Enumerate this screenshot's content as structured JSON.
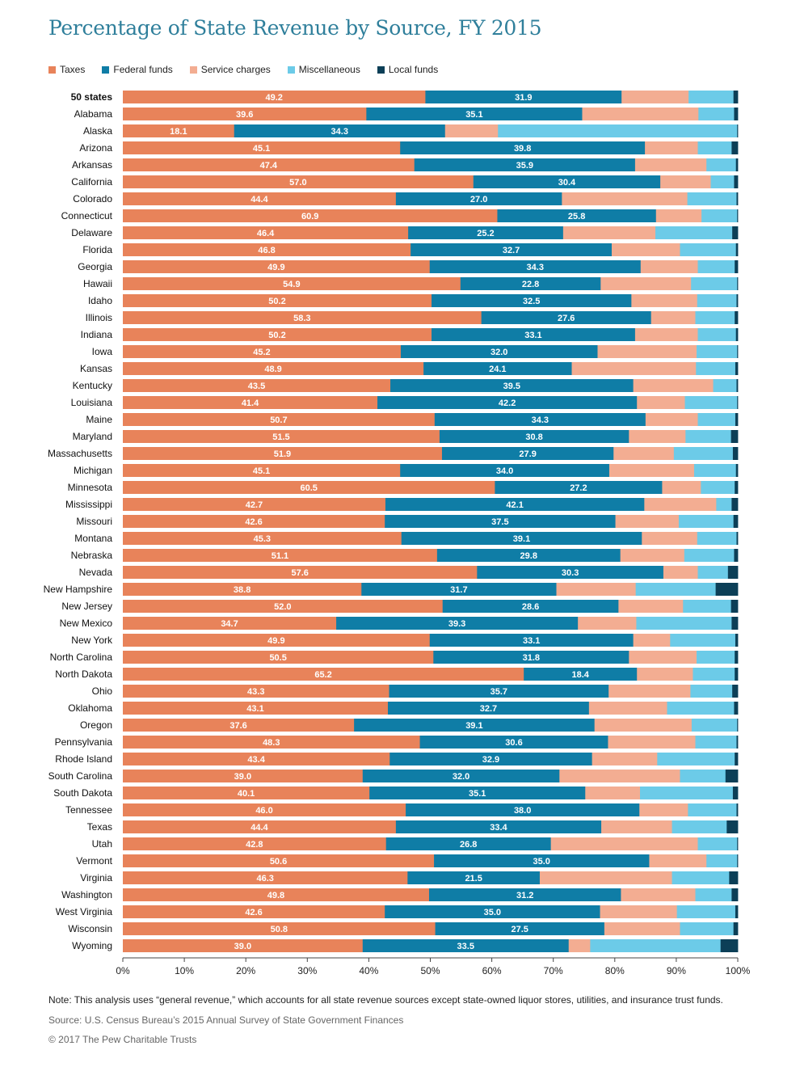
{
  "chart_data": {
    "type": "bar",
    "orientation": "horizontal",
    "stacked": true,
    "title": "Percentage of State Revenue by Source, FY 2015",
    "xlim": [
      0,
      100
    ],
    "x_ticks": [
      "0%",
      "10%",
      "20%",
      "30%",
      "40%",
      "50%",
      "60%",
      "70%",
      "80%",
      "90%",
      "100%"
    ],
    "legend_position": "top-left",
    "grid": false,
    "series": [
      {
        "name": "Taxes",
        "color": "#e8835a",
        "labeled": true
      },
      {
        "name": "Federal funds",
        "color": "#0f7da6",
        "labeled": true
      },
      {
        "name": "Service charges",
        "color": "#f3ad92",
        "labeled": false
      },
      {
        "name": "Miscellaneous",
        "color": "#6ccbe8",
        "labeled": false
      },
      {
        "name": "Local funds",
        "color": "#0c3f57",
        "labeled": false
      }
    ],
    "rows": [
      {
        "category": "50 states",
        "bold": true,
        "values": [
          49.2,
          31.9,
          10.9,
          7.3,
          0.7
        ]
      },
      {
        "category": "Alabama",
        "values": [
          39.6,
          35.1,
          18.9,
          5.8,
          0.6
        ]
      },
      {
        "category": "Alaska",
        "values": [
          18.1,
          34.3,
          8.6,
          38.9,
          0.1
        ]
      },
      {
        "category": "Arizona",
        "values": [
          45.1,
          39.8,
          8.6,
          5.5,
          1.0
        ]
      },
      {
        "category": "Arkansas",
        "values": [
          47.4,
          35.9,
          11.6,
          4.8,
          0.3
        ]
      },
      {
        "category": "California",
        "values": [
          57.0,
          30.4,
          8.2,
          3.8,
          0.6
        ]
      },
      {
        "category": "Colorado",
        "values": [
          44.4,
          27.0,
          20.4,
          8.0,
          0.2
        ]
      },
      {
        "category": "Connecticut",
        "values": [
          60.9,
          25.8,
          7.4,
          5.8,
          0.1
        ]
      },
      {
        "category": "Delaware",
        "values": [
          46.4,
          25.2,
          15.0,
          12.5,
          0.9
        ]
      },
      {
        "category": "Florida",
        "values": [
          46.8,
          32.7,
          11.1,
          9.1,
          0.3
        ]
      },
      {
        "category": "Georgia",
        "values": [
          49.9,
          34.3,
          9.3,
          6.0,
          0.5
        ]
      },
      {
        "category": "Hawaii",
        "values": [
          54.9,
          22.8,
          14.7,
          7.5,
          0.1
        ]
      },
      {
        "category": "Idaho",
        "values": [
          50.2,
          32.5,
          10.7,
          6.4,
          0.2
        ]
      },
      {
        "category": "Illinois",
        "values": [
          58.3,
          27.6,
          7.2,
          6.4,
          0.5
        ]
      },
      {
        "category": "Indiana",
        "values": [
          50.2,
          33.1,
          10.2,
          6.2,
          0.3
        ]
      },
      {
        "category": "Iowa",
        "values": [
          45.2,
          32.0,
          16.1,
          6.6,
          0.1
        ]
      },
      {
        "category": "Kansas",
        "values": [
          48.9,
          24.1,
          20.2,
          6.4,
          0.4
        ]
      },
      {
        "category": "Kentucky",
        "values": [
          43.5,
          39.5,
          13.0,
          3.8,
          0.2
        ]
      },
      {
        "category": "Louisiana",
        "values": [
          41.4,
          42.2,
          7.8,
          8.5,
          0.1
        ]
      },
      {
        "category": "Maine",
        "values": [
          50.7,
          34.3,
          8.5,
          6.1,
          0.4
        ]
      },
      {
        "category": "Maryland",
        "values": [
          51.5,
          30.8,
          9.2,
          7.4,
          1.1
        ]
      },
      {
        "category": "Massachusetts",
        "values": [
          51.9,
          27.9,
          9.8,
          9.6,
          0.8
        ]
      },
      {
        "category": "Michigan",
        "values": [
          45.1,
          34.0,
          13.8,
          6.8,
          0.3
        ]
      },
      {
        "category": "Minnesota",
        "values": [
          60.5,
          27.2,
          6.3,
          5.5,
          0.5
        ]
      },
      {
        "category": "Mississippi",
        "values": [
          42.7,
          42.1,
          11.7,
          2.5,
          1.0
        ]
      },
      {
        "category": "Missouri",
        "values": [
          42.6,
          37.5,
          10.3,
          8.9,
          0.7
        ]
      },
      {
        "category": "Montana",
        "values": [
          45.3,
          39.1,
          9.0,
          6.4,
          0.2
        ]
      },
      {
        "category": "Nebraska",
        "values": [
          51.1,
          29.8,
          10.4,
          8.1,
          0.6
        ]
      },
      {
        "category": "Nevada",
        "values": [
          57.6,
          30.3,
          5.6,
          4.9,
          1.6
        ]
      },
      {
        "category": "New Hampshire",
        "values": [
          38.8,
          31.7,
          12.9,
          13.0,
          3.6
        ]
      },
      {
        "category": "New Jersey",
        "values": [
          52.0,
          28.6,
          10.5,
          7.8,
          1.1
        ]
      },
      {
        "category": "New Mexico",
        "values": [
          34.7,
          39.3,
          9.5,
          15.5,
          1.0
        ]
      },
      {
        "category": "New York",
        "values": [
          49.9,
          33.1,
          6.0,
          10.6,
          0.4
        ]
      },
      {
        "category": "North Carolina",
        "values": [
          50.5,
          31.8,
          11.0,
          6.2,
          0.5
        ]
      },
      {
        "category": "North Dakota",
        "values": [
          65.2,
          18.4,
          9.1,
          6.8,
          0.5
        ]
      },
      {
        "category": "Ohio",
        "values": [
          43.3,
          35.7,
          13.3,
          6.8,
          0.9
        ]
      },
      {
        "category": "Oklahoma",
        "values": [
          43.1,
          32.7,
          12.7,
          10.9,
          0.6
        ]
      },
      {
        "category": "Oregon",
        "values": [
          37.6,
          39.1,
          15.8,
          7.4,
          0.1
        ]
      },
      {
        "category": "Pennsylvania",
        "values": [
          48.3,
          30.6,
          14.2,
          6.7,
          0.2
        ]
      },
      {
        "category": "Rhode Island",
        "values": [
          43.4,
          32.9,
          10.6,
          12.6,
          0.5
        ]
      },
      {
        "category": "South Carolina",
        "values": [
          39.0,
          32.0,
          19.6,
          7.4,
          2.0
        ]
      },
      {
        "category": "South Dakota",
        "values": [
          40.1,
          35.1,
          8.9,
          15.1,
          0.8
        ]
      },
      {
        "category": "Tennessee",
        "values": [
          46.0,
          38.0,
          7.9,
          7.9,
          0.2
        ]
      },
      {
        "category": "Texas",
        "values": [
          44.4,
          33.4,
          11.5,
          8.9,
          1.8
        ]
      },
      {
        "category": "Utah",
        "values": [
          42.8,
          26.8,
          23.9,
          6.4,
          0.1
        ]
      },
      {
        "category": "Vermont",
        "values": [
          50.6,
          35.0,
          9.3,
          5.0,
          0.1
        ]
      },
      {
        "category": "Virginia",
        "values": [
          46.3,
          21.5,
          21.5,
          9.3,
          1.4
        ]
      },
      {
        "category": "Washington",
        "values": [
          49.8,
          31.2,
          12.1,
          5.9,
          1.0
        ]
      },
      {
        "category": "West Virginia",
        "values": [
          42.6,
          35.0,
          12.5,
          9.5,
          0.4
        ]
      },
      {
        "category": "Wisconsin",
        "values": [
          50.8,
          27.5,
          12.3,
          8.7,
          0.7
        ]
      },
      {
        "category": "Wyoming",
        "values": [
          39.0,
          33.5,
          3.5,
          21.2,
          2.8
        ]
      }
    ]
  },
  "note": "Note: This analysis uses “general revenue,” which accounts for all state revenue sources except state-owned liquor stores, utilities, and insurance trust funds.",
  "source": "Source: U.S. Census Bureau’s 2015 Annual Survey of State Government Finances",
  "copyright": "© 2017 The Pew Charitable Trusts"
}
